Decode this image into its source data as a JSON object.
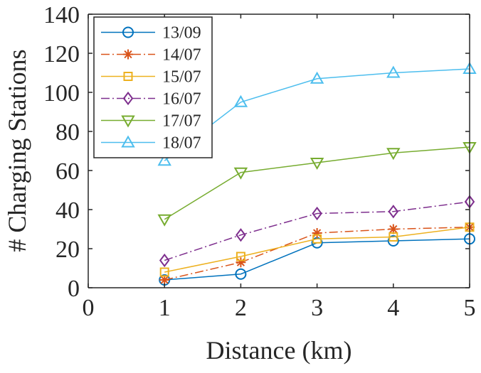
{
  "chart_data": {
    "type": "line",
    "title": "",
    "xlabel": "Distance (km)",
    "ylabel": "# Charging Stations",
    "xlim": [
      0,
      5
    ],
    "ylim": [
      0,
      140
    ],
    "xticks": [
      0,
      1,
      2,
      3,
      4,
      5
    ],
    "yticks": [
      0,
      20,
      40,
      60,
      80,
      100,
      120,
      140
    ],
    "grid": false,
    "legend_position": "top-left",
    "x": [
      1,
      2,
      3,
      4,
      5
    ],
    "series": [
      {
        "name": "13/09",
        "values": [
          4,
          7,
          23,
          24,
          25
        ],
        "color": "#0072BD",
        "marker": "circle",
        "line_style": "solid"
      },
      {
        "name": "14/07",
        "values": [
          4,
          13,
          28,
          30,
          31
        ],
        "color": "#D95319",
        "marker": "asterisk",
        "line_style": "dash-dot"
      },
      {
        "name": "15/07",
        "values": [
          8,
          16,
          25,
          26,
          31
        ],
        "color": "#EDB120",
        "marker": "square",
        "line_style": "solid"
      },
      {
        "name": "16/07",
        "values": [
          14,
          27,
          38,
          39,
          44
        ],
        "color": "#7E2F8E",
        "marker": "diamond",
        "line_style": "dash-dot"
      },
      {
        "name": "17/07",
        "values": [
          35,
          59,
          64,
          69,
          72
        ],
        "color": "#77AC30",
        "marker": "triangle-down",
        "line_style": "solid"
      },
      {
        "name": "18/07",
        "values": [
          65,
          95,
          107,
          110,
          112
        ],
        "color": "#4DBEEE",
        "marker": "triangle-up",
        "line_style": "solid"
      }
    ]
  }
}
